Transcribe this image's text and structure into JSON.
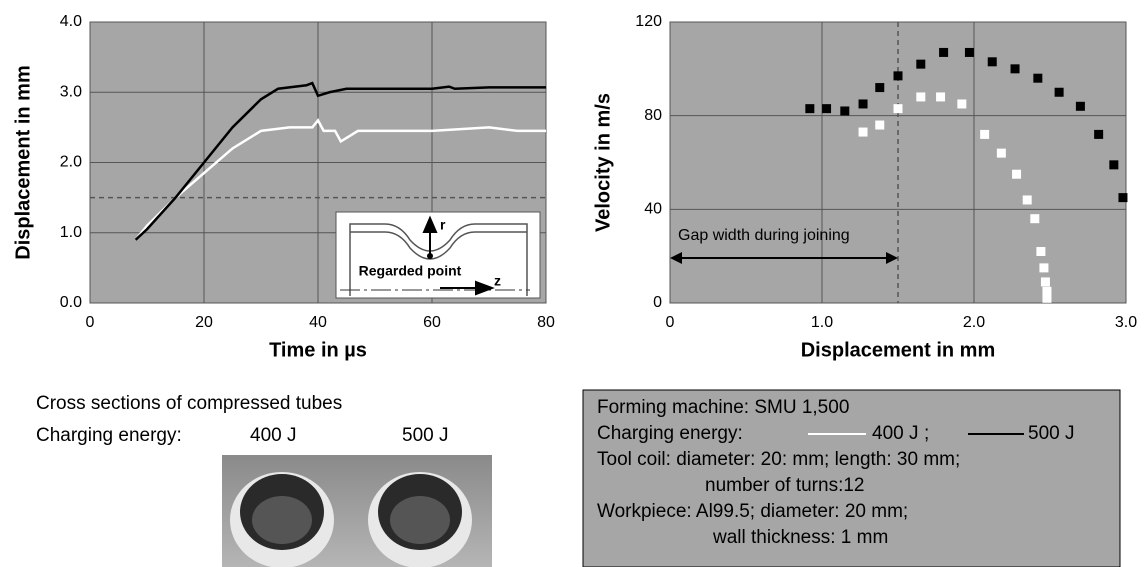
{
  "chart_data": [
    {
      "type": "line",
      "xlabel": "Time in µs",
      "ylabel": "Displacement in mm",
      "xlim": [
        0,
        80
      ],
      "xticks": [
        0,
        20,
        40,
        60,
        80
      ],
      "ylim": [
        0,
        4
      ],
      "yticks": [
        {
          "value": 0,
          "label": "0.0"
        },
        {
          "value": 1,
          "label": "1.0"
        },
        {
          "value": 2,
          "label": "2.0"
        },
        {
          "value": 3,
          "label": "3.0"
        },
        {
          "value": 4,
          "label": "4.0"
        }
      ],
      "grid": true,
      "hline": 1.5,
      "inset_labels": [
        "r",
        "Regarded point",
        "z"
      ],
      "series": [
        {
          "name": "400 J",
          "color": "#ffffff",
          "x": [
            8,
            10,
            15,
            20,
            25,
            30,
            35,
            39,
            40,
            41,
            43,
            44,
            45,
            47,
            60,
            70,
            75,
            80
          ],
          "values": [
            0.9,
            1.1,
            1.5,
            1.85,
            2.2,
            2.45,
            2.5,
            2.5,
            2.6,
            2.45,
            2.45,
            2.3,
            2.35,
            2.45,
            2.45,
            2.5,
            2.45,
            2.45
          ]
        },
        {
          "name": "500 J",
          "color": "#000000",
          "x": [
            8,
            10,
            15,
            20,
            25,
            30,
            33,
            38,
            39,
            40,
            42,
            45,
            50,
            60,
            63,
            64,
            70,
            80
          ],
          "values": [
            0.9,
            1.05,
            1.5,
            2.0,
            2.5,
            2.9,
            3.05,
            3.1,
            3.13,
            2.95,
            3.0,
            3.05,
            3.05,
            3.05,
            3.08,
            3.05,
            3.07,
            3.07
          ]
        }
      ]
    },
    {
      "type": "scatter",
      "xlabel": "Displacement in mm",
      "ylabel": "Velocity in m/s",
      "xlim": [
        0,
        3
      ],
      "xticks": [
        0,
        {
          "value": 1,
          "label": "1.0"
        },
        {
          "value": 2,
          "label": "2.0"
        },
        {
          "value": 3,
          "label": "3.0"
        }
      ],
      "ylim": [
        0,
        120
      ],
      "yticks": [
        0,
        40,
        80,
        120
      ],
      "grid": true,
      "vline": 1.5,
      "annotation": "Gap width during joining",
      "series": [
        {
          "name": "400 J",
          "color": "#ffffff",
          "x": [
            1.27,
            1.38,
            1.5,
            1.65,
            1.78,
            1.92,
            2.07,
            2.18,
            2.28,
            2.35,
            2.4,
            2.44,
            2.46,
            2.47,
            2.48,
            2.48
          ],
          "values": [
            73,
            76,
            83,
            88,
            88,
            85,
            72,
            64,
            55,
            44,
            36,
            22,
            15,
            9,
            5,
            2
          ]
        },
        {
          "name": "500 J",
          "color": "#000000",
          "x": [
            0.92,
            1.03,
            1.15,
            1.27,
            1.38,
            1.5,
            1.65,
            1.8,
            1.97,
            2.12,
            2.27,
            2.42,
            2.56,
            2.7,
            2.82,
            2.92,
            2.98
          ],
          "values": [
            83,
            83,
            82,
            85,
            92,
            97,
            102,
            107,
            107,
            103,
            100,
            96,
            90,
            84,
            72,
            59,
            45
          ]
        }
      ]
    }
  ],
  "photo_caption": {
    "title": "Cross sections of compressed tubes",
    "label": "Charging energy:",
    "left": "400 J",
    "right": "500 J"
  },
  "info_box": {
    "lines": [
      "Forming machine: SMU 1,500",
      "Charging energy:",
      "Tool coil: diameter: 20: mm; length: 30 mm;",
      "number of turns:12",
      "Workpiece: Al99.5; diameter: 20 mm;",
      "wall thickness: 1 mm"
    ],
    "separator": ";"
  }
}
